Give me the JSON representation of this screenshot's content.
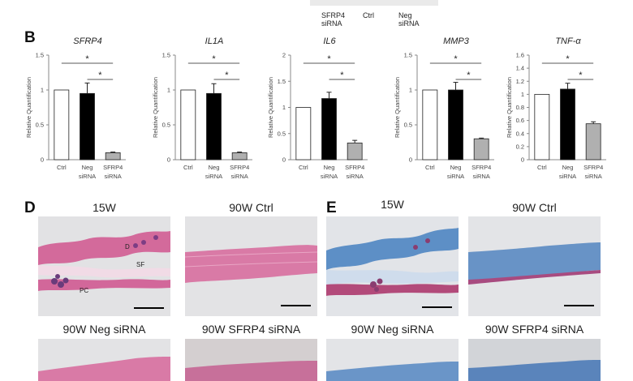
{
  "header": {
    "labels": [
      "SFRP4\nsiRNA",
      "Ctrl",
      "Neg\nsiRNA"
    ]
  },
  "panels": {
    "B": "B",
    "D": "D",
    "E": "E"
  },
  "chart_data": [
    {
      "type": "bar",
      "title": "SFRP4",
      "ylabel": "Relative Quantification",
      "ylim": [
        0,
        1.5
      ],
      "yticks": [
        "0",
        "0.5",
        "1",
        "1.5"
      ],
      "categories": [
        "Ctrl",
        "Neg\nsiRNA",
        "SFRP4\nsiRNA"
      ],
      "values": [
        1.0,
        0.95,
        0.1
      ],
      "errors": [
        0,
        0.15,
        0.01
      ],
      "colors": [
        "#ffffff",
        "#000000",
        "#b0b0b0"
      ],
      "significance": [
        "*",
        "*"
      ]
    },
    {
      "type": "bar",
      "title": "IL1A",
      "ylabel": "Relative Quantification",
      "ylim": [
        0,
        1.5
      ],
      "yticks": [
        "0",
        "0.5",
        "1",
        "1.5"
      ],
      "categories": [
        "Ctrl",
        "Neg\nsiRNA",
        "SFRP4\nsiRNA"
      ],
      "values": [
        1.0,
        0.95,
        0.1
      ],
      "errors": [
        0,
        0.14,
        0.01
      ],
      "colors": [
        "#ffffff",
        "#000000",
        "#b0b0b0"
      ],
      "significance": [
        "*",
        "*"
      ]
    },
    {
      "type": "bar",
      "title": "IL6",
      "ylabel": "Relative Quantification",
      "ylim": [
        0,
        2
      ],
      "yticks": [
        "0",
        "0.5",
        "1",
        "1.5",
        "2"
      ],
      "categories": [
        "Ctrl",
        "Neg\nsiRNA",
        "SFRP4\nsiRNA"
      ],
      "values": [
        1.0,
        1.17,
        0.32
      ],
      "errors": [
        0,
        0.12,
        0.05
      ],
      "colors": [
        "#ffffff",
        "#000000",
        "#b0b0b0"
      ],
      "significance": [
        "*",
        "*"
      ]
    },
    {
      "type": "bar",
      "title": "MMP3",
      "ylabel": "Relative Quantification",
      "ylim": [
        0,
        1.5
      ],
      "yticks": [
        "0",
        "0.5",
        "1",
        "1.5"
      ],
      "categories": [
        "Ctrl",
        "Neg\nsiRNA",
        "SFRP4\nsiRNA"
      ],
      "values": [
        1.0,
        1.0,
        0.3
      ],
      "errors": [
        0,
        0.11,
        0.01
      ],
      "colors": [
        "#ffffff",
        "#000000",
        "#b0b0b0"
      ],
      "significance": [
        "*",
        "*"
      ]
    },
    {
      "type": "bar",
      "title": "TNF-α",
      "ylabel": "Relative Quantification",
      "ylim": [
        0,
        1.6
      ],
      "yticks": [
        "0",
        "0.2",
        "0.4",
        "0.6",
        "0.8",
        "1",
        "1.2",
        "1.4",
        "1.6"
      ],
      "categories": [
        "Ctrl",
        "Neg\nsiRNA",
        "SFRP4\nsiRNA"
      ],
      "values": [
        1.0,
        1.08,
        0.55
      ],
      "errors": [
        0,
        0.09,
        0.03
      ],
      "colors": [
        "#ffffff",
        "#000000",
        "#b0b0b0"
      ],
      "significance": [
        "*",
        "*"
      ]
    }
  ],
  "micrographs": {
    "D": {
      "titles": [
        "15W",
        "90W Ctrl",
        "90W Neg siRNA",
        "90W SFRP4 siRNA"
      ],
      "annotations": [
        "D",
        "SF",
        "PC"
      ],
      "stain": "H&E",
      "tissue_color": "#d8739f",
      "background_color": "#e4e4e4"
    },
    "E": {
      "titles": [
        "15W",
        "90W Ctrl",
        "90W Neg siRNA",
        "90W SFRP4 siRNA"
      ],
      "stain": "Masson trichrome",
      "tissue_color": "#5b8fc4",
      "background_color": "#e4e4e4"
    }
  }
}
